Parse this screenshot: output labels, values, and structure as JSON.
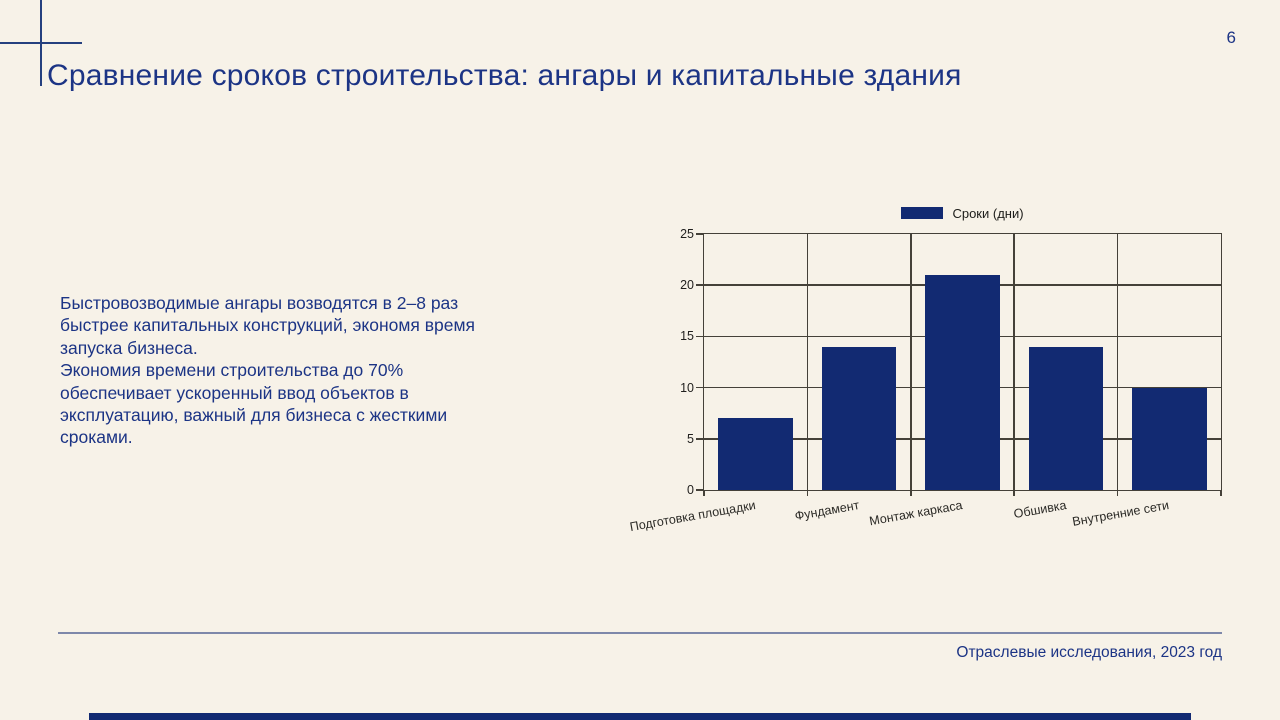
{
  "page": {
    "number": "6",
    "background_color": "#f7f2e8",
    "accent_navy": "#122a72",
    "text_navy": "#1c3485"
  },
  "header": {
    "title": "Сравнение сроков строительства: ангары и капитальные здания"
  },
  "body": {
    "paragraph1": "Быстровозводимые ангары возводятся в 2–8 раз быстрее капитальных конструкций, экономя время запуска бизнеса.",
    "paragraph2": "Экономия времени строительства до 70% обеспечивает ускоренный ввод объектов в эксплуатацию, важный для бизнеса с жесткими сроками."
  },
  "chart_data": {
    "type": "bar",
    "title": "",
    "categories": [
      "Подготовка площадки",
      "Фундамент",
      "Монтаж каркаса",
      "Обшивка",
      "Внутренние сети"
    ],
    "values": [
      7,
      14,
      21,
      14,
      10
    ],
    "ylim": [
      0,
      25
    ],
    "yticks": [
      0,
      5,
      10,
      15,
      20,
      25
    ],
    "grid": true,
    "bar_color": "#122a72",
    "legend_position": "top-center",
    "legend": [
      {
        "label": "Сроки (дни)",
        "color": "#122a72"
      }
    ]
  },
  "footer": {
    "source": "Отраслевые исследования, 2023 год"
  }
}
